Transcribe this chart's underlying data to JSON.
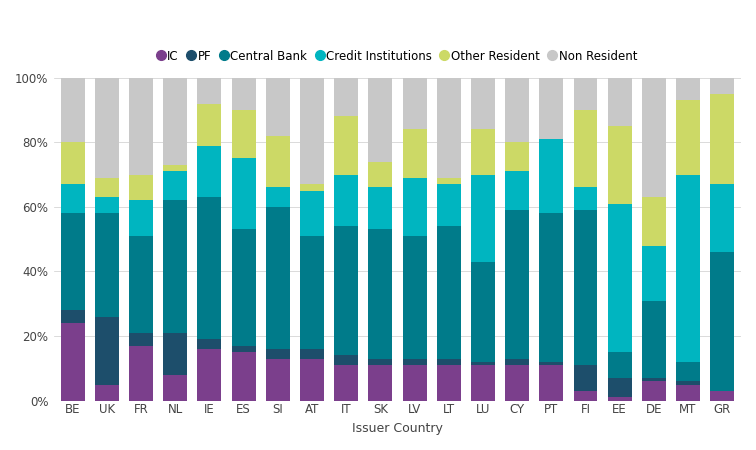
{
  "countries": [
    "BE",
    "UK",
    "FR",
    "NL",
    "IE",
    "ES",
    "SI",
    "AT",
    "IT",
    "SK",
    "LV",
    "LT",
    "LU",
    "CY",
    "PT",
    "FI",
    "EE",
    "DE",
    "MT",
    "GR"
  ],
  "segments": [
    "IC",
    "PF",
    "Central Bank",
    "Credit Institutions",
    "Other Resident",
    "Non Resident"
  ],
  "colors": [
    "#7b3f8c",
    "#1d4e6b",
    "#007b8a",
    "#00b5c0",
    "#ccd966",
    "#c8c8c8"
  ],
  "data": {
    "IC": [
      24,
      5,
      17,
      8,
      16,
      15,
      13,
      13,
      11,
      11,
      11,
      11,
      11,
      11,
      11,
      3,
      1,
      6,
      5,
      3
    ],
    "PF": [
      4,
      21,
      4,
      13,
      3,
      2,
      3,
      3,
      3,
      2,
      2,
      2,
      1,
      2,
      1,
      8,
      6,
      1,
      1,
      0
    ],
    "Central Bank": [
      30,
      32,
      30,
      41,
      44,
      36,
      44,
      35,
      40,
      40,
      38,
      41,
      31,
      46,
      46,
      48,
      8,
      24,
      6,
      43
    ],
    "Credit Institutions": [
      9,
      5,
      11,
      9,
      16,
      22,
      6,
      14,
      16,
      13,
      18,
      13,
      27,
      12,
      23,
      7,
      46,
      17,
      58,
      21
    ],
    "Other Resident": [
      13,
      6,
      8,
      2,
      13,
      15,
      16,
      2,
      18,
      8,
      15,
      2,
      14,
      9,
      0,
      24,
      24,
      15,
      23,
      28
    ],
    "Non Resident": [
      20,
      31,
      30,
      27,
      8,
      10,
      18,
      33,
      12,
      26,
      16,
      31,
      16,
      20,
      19,
      10,
      15,
      37,
      7,
      5
    ]
  },
  "xlabel": "Issuer Country",
  "bar_width": 0.7
}
